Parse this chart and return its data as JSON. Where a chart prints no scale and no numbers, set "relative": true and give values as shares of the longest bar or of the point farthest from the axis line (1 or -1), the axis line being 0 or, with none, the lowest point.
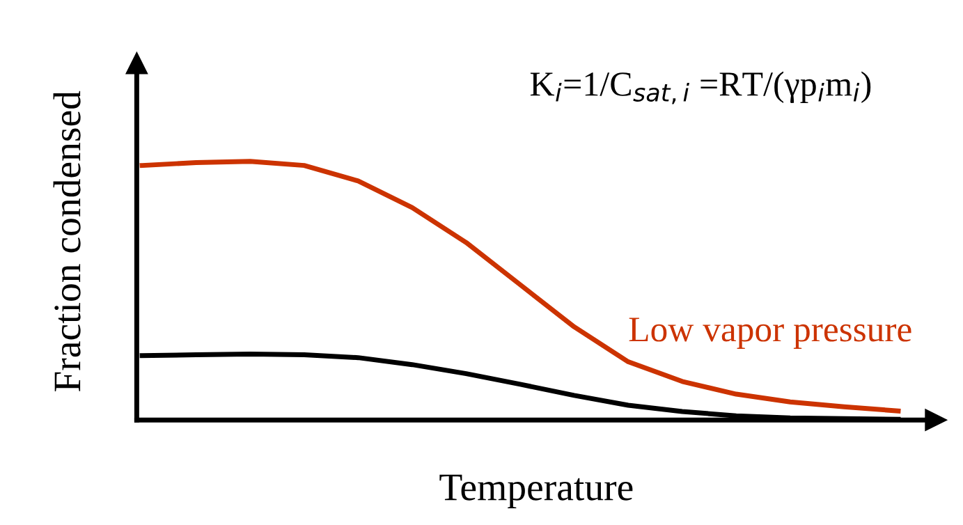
{
  "chart_data": {
    "type": "line",
    "relative": true,
    "xlabel": "Temperature",
    "ylabel": "Fraction condensed",
    "annotations": [
      "K$_{i}$=1/C$_{sat,i}$ =RT/(γp$_{i}$m$_{i}$)"
    ],
    "categories": [
      null,
      null,
      null,
      null,
      null,
      null,
      null,
      null,
      null,
      null,
      null,
      null,
      null,
      null,
      null
    ],
    "series": [
      {
        "name": "Low vapor pressure",
        "color": "#cc3300",
        "values": [
          0.984,
          0.995,
          1,
          0.984,
          0.924,
          0.821,
          0.686,
          0.523,
          0.36,
          0.225,
          0.149,
          0.1,
          0.07,
          0.051,
          0.035
        ]
      },
      {
        "color": "#000000",
        "values": [
          0.249,
          0.252,
          0.255,
          0.252,
          0.241,
          0.214,
          0.179,
          0.138,
          0.095,
          0.057,
          0.033,
          0.016,
          0.008,
          0.005,
          0.003
        ]
      }
    ],
    "grid": false,
    "legend": false,
    "tick_labels": false,
    "marker": "none",
    "line_style": "solid"
  }
}
